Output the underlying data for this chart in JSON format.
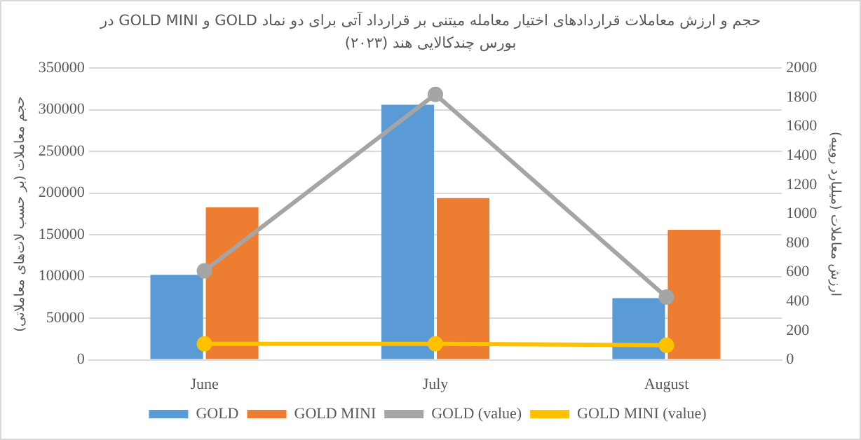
{
  "chart_data": {
    "type": "bar",
    "title": "حجم و ارزش معاملات قراردادهای اختیار معامله میتنی بر قرارداد آتی برای دو نماد GOLD و GOLD MINI در بورس چندکالایی هند (۲۰۲۳)",
    "ylabel": "حجم معاملات (بر حسب لات‌های معاملاتی)",
    "y2label": "ارزش معاملات (میلیارد روپیه)",
    "categories": [
      "June",
      "July",
      "August"
    ],
    "series": [
      {
        "name": "GOLD",
        "color": "#5b9bd5",
        "values": [
          102000,
          306000,
          74000
        ]
      },
      {
        "name": "GOLD MINI",
        "color": "#ed7d31",
        "values": [
          183000,
          194000,
          156000
        ]
      },
      {
        "name": "GOLD (value)",
        "type": "line",
        "axis": "y2",
        "color": "#a5a5a5",
        "values": [
          610,
          1820,
          430
        ]
      },
      {
        "name": "GOLD MINI (value)",
        "type": "line",
        "axis": "y2",
        "color": "#ffc000",
        "values": [
          110,
          110,
          100
        ]
      }
    ],
    "ylim": [
      0,
      350000
    ],
    "yticks": [
      0,
      50000,
      100000,
      150000,
      200000,
      250000,
      300000,
      350000
    ],
    "y2lim": [
      0,
      2000
    ],
    "y2ticks": [
      0,
      200,
      400,
      600,
      800,
      1000,
      1200,
      1400,
      1600,
      1800,
      2000
    ],
    "grid": "y",
    "legend": "bottom",
    "marker": "circle",
    "line_style": "solid"
  }
}
